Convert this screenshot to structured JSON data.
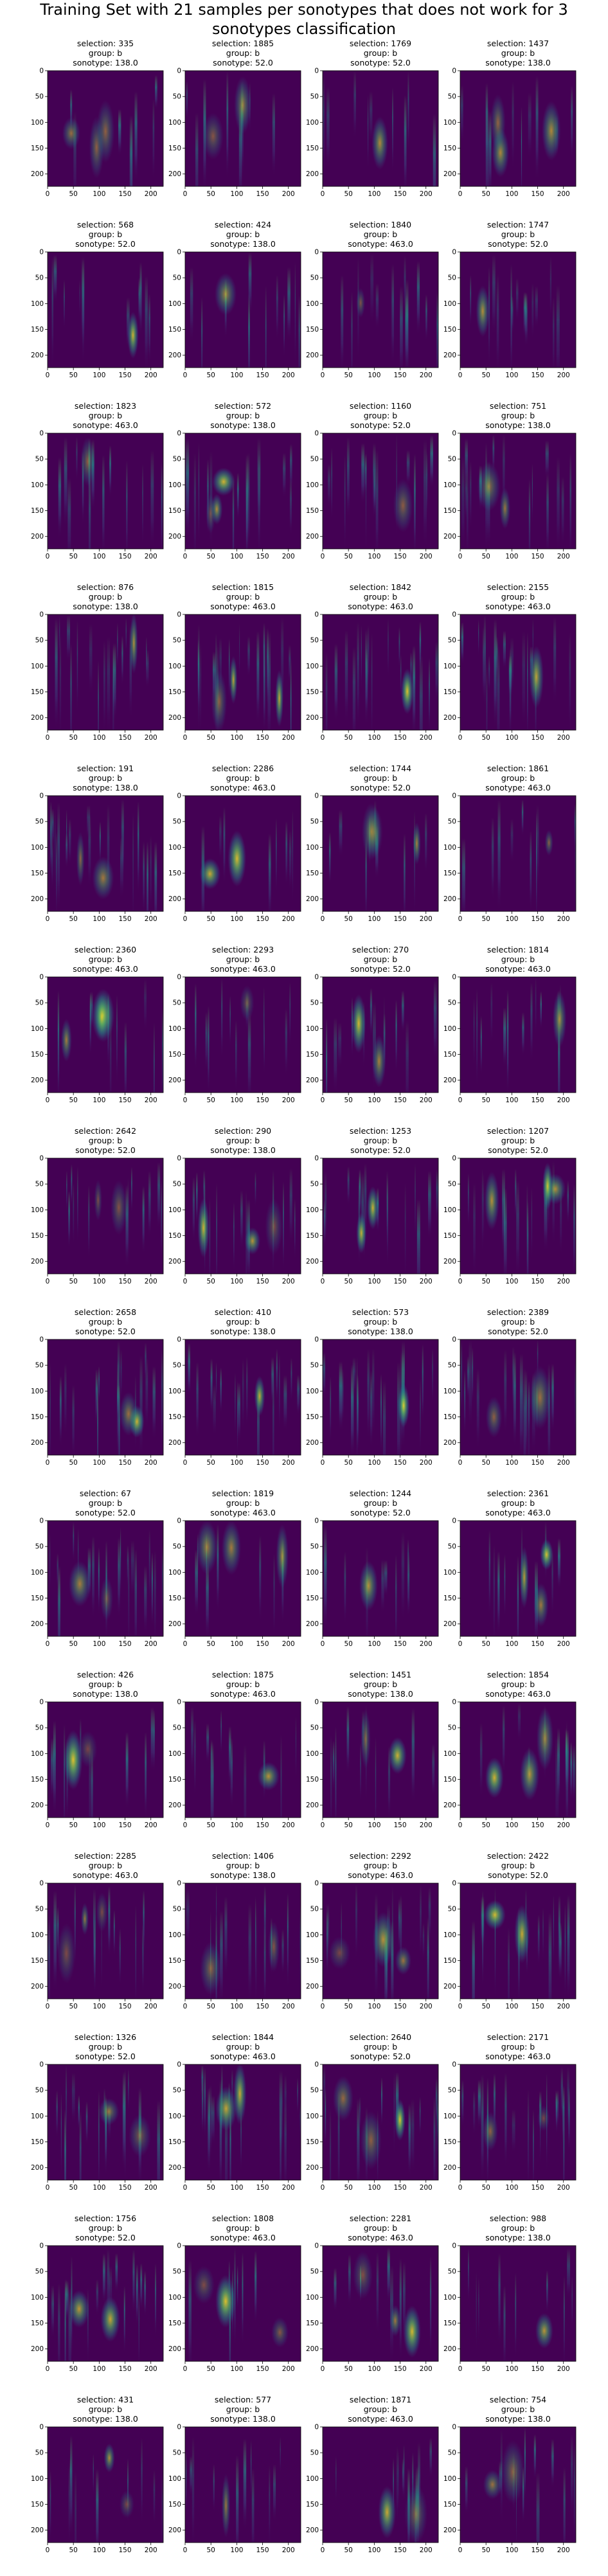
{
  "suptitle": "Training Set with 21 samples per sonotypes that does not work for 3 sonotypes classification",
  "chart_data": {
    "type": "heatmap",
    "colormap": "viridis",
    "xlim": [
      0,
      224
    ],
    "ylim": [
      224,
      0
    ],
    "xticks": [
      "0",
      "50",
      "100",
      "150",
      "200"
    ],
    "yticks": [
      "0",
      "50",
      "100",
      "150",
      "200"
    ],
    "panels": [
      {
        "selection": "selection: 335",
        "group": "group: b",
        "sonotype": "sonotype: 138.0"
      },
      {
        "selection": "selection: 1885",
        "group": "group: b",
        "sonotype": "sonotype: 52.0"
      },
      {
        "selection": "selection: 1769",
        "group": "group: b",
        "sonotype": "sonotype: 52.0"
      },
      {
        "selection": "selection: 1437",
        "group": "group: b",
        "sonotype": "sonotype: 138.0"
      },
      {
        "selection": "selection: 568",
        "group": "group: b",
        "sonotype": "sonotype: 52.0"
      },
      {
        "selection": "selection: 424",
        "group": "group: b",
        "sonotype": "sonotype: 138.0"
      },
      {
        "selection": "selection: 1840",
        "group": "group: b",
        "sonotype": "sonotype: 463.0"
      },
      {
        "selection": "selection: 1747",
        "group": "group: b",
        "sonotype": "sonotype: 52.0"
      },
      {
        "selection": "selection: 1823",
        "group": "group: b",
        "sonotype": "sonotype: 463.0"
      },
      {
        "selection": "selection: 572",
        "group": "group: b",
        "sonotype": "sonotype: 138.0"
      },
      {
        "selection": "selection: 1160",
        "group": "group: b",
        "sonotype": "sonotype: 52.0"
      },
      {
        "selection": "selection: 751",
        "group": "group: b",
        "sonotype": "sonotype: 138.0"
      },
      {
        "selection": "selection: 876",
        "group": "group: b",
        "sonotype": "sonotype: 138.0"
      },
      {
        "selection": "selection: 1815",
        "group": "group: b",
        "sonotype": "sonotype: 463.0"
      },
      {
        "selection": "selection: 1842",
        "group": "group: b",
        "sonotype": "sonotype: 463.0"
      },
      {
        "selection": "selection: 2155",
        "group": "group: b",
        "sonotype": "sonotype: 463.0"
      },
      {
        "selection": "selection: 191",
        "group": "group: b",
        "sonotype": "sonotype: 138.0"
      },
      {
        "selection": "selection: 2286",
        "group": "group: b",
        "sonotype": "sonotype: 463.0"
      },
      {
        "selection": "selection: 1744",
        "group": "group: b",
        "sonotype": "sonotype: 52.0"
      },
      {
        "selection": "selection: 1861",
        "group": "group: b",
        "sonotype": "sonotype: 463.0"
      },
      {
        "selection": "selection: 2360",
        "group": "group: b",
        "sonotype": "sonotype: 463.0"
      },
      {
        "selection": "selection: 2293",
        "group": "group: b",
        "sonotype": "sonotype: 463.0"
      },
      {
        "selection": "selection: 270",
        "group": "group: b",
        "sonotype": "sonotype: 52.0"
      },
      {
        "selection": "selection: 1814",
        "group": "group: b",
        "sonotype": "sonotype: 463.0"
      },
      {
        "selection": "selection: 2642",
        "group": "group: b",
        "sonotype": "sonotype: 52.0"
      },
      {
        "selection": "selection: 290",
        "group": "group: b",
        "sonotype": "sonotype: 138.0"
      },
      {
        "selection": "selection: 1253",
        "group": "group: b",
        "sonotype": "sonotype: 52.0"
      },
      {
        "selection": "selection: 1207",
        "group": "group: b",
        "sonotype": "sonotype: 52.0"
      },
      {
        "selection": "selection: 2658",
        "group": "group: b",
        "sonotype": "sonotype: 52.0"
      },
      {
        "selection": "selection: 410",
        "group": "group: b",
        "sonotype": "sonotype: 138.0"
      },
      {
        "selection": "selection: 573",
        "group": "group: b",
        "sonotype": "sonotype: 138.0"
      },
      {
        "selection": "selection: 2389",
        "group": "group: b",
        "sonotype": "sonotype: 52.0"
      },
      {
        "selection": "selection: 67",
        "group": "group: b",
        "sonotype": "sonotype: 52.0"
      },
      {
        "selection": "selection: 1819",
        "group": "group: b",
        "sonotype": "sonotype: 463.0"
      },
      {
        "selection": "selection: 1244",
        "group": "group: b",
        "sonotype": "sonotype: 52.0"
      },
      {
        "selection": "selection: 2361",
        "group": "group: b",
        "sonotype": "sonotype: 463.0"
      },
      {
        "selection": "selection: 426",
        "group": "group: b",
        "sonotype": "sonotype: 138.0"
      },
      {
        "selection": "selection: 1875",
        "group": "group: b",
        "sonotype": "sonotype: 463.0"
      },
      {
        "selection": "selection: 1451",
        "group": "group: b",
        "sonotype": "sonotype: 138.0"
      },
      {
        "selection": "selection: 1854",
        "group": "group: b",
        "sonotype": "sonotype: 463.0"
      },
      {
        "selection": "selection: 2285",
        "group": "group: b",
        "sonotype": "sonotype: 463.0"
      },
      {
        "selection": "selection: 1406",
        "group": "group: b",
        "sonotype": "sonotype: 138.0"
      },
      {
        "selection": "selection: 2292",
        "group": "group: b",
        "sonotype": "sonotype: 463.0"
      },
      {
        "selection": "selection: 2422",
        "group": "group: b",
        "sonotype": "sonotype: 52.0"
      },
      {
        "selection": "selection: 1326",
        "group": "group: b",
        "sonotype": "sonotype: 52.0"
      },
      {
        "selection": "selection: 1844",
        "group": "group: b",
        "sonotype": "sonotype: 463.0"
      },
      {
        "selection": "selection: 2640",
        "group": "group: b",
        "sonotype": "sonotype: 52.0"
      },
      {
        "selection": "selection: 2171",
        "group": "group: b",
        "sonotype": "sonotype: 463.0"
      },
      {
        "selection": "selection: 1756",
        "group": "group: b",
        "sonotype": "sonotype: 52.0"
      },
      {
        "selection": "selection: 1808",
        "group": "group: b",
        "sonotype": "sonotype: 463.0"
      },
      {
        "selection": "selection: 2281",
        "group": "group: b",
        "sonotype": "sonotype: 463.0"
      },
      {
        "selection": "selection: 988",
        "group": "group: b",
        "sonotype": "sonotype: 138.0"
      },
      {
        "selection": "selection: 431",
        "group": "group: b",
        "sonotype": "sonotype: 138.0"
      },
      {
        "selection": "selection: 577",
        "group": "group: b",
        "sonotype": "sonotype: 138.0"
      },
      {
        "selection": "selection: 1871",
        "group": "group: b",
        "sonotype": "sonotype: 463.0"
      },
      {
        "selection": "selection: 754",
        "group": "group: b",
        "sonotype": "sonotype: 138.0"
      }
    ]
  }
}
